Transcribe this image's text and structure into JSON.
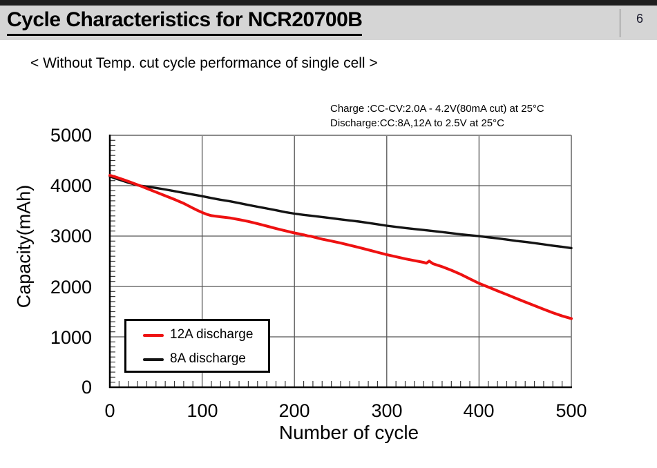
{
  "header": {
    "title": "Cycle Characteristics for NCR20700B",
    "page_number": "6"
  },
  "subtitle": "< Without Temp. cut cycle performance of single cell >",
  "colors": {
    "red_series": "#ee1111",
    "black_series": "#141414",
    "gridline": "#555555",
    "plot_border_gray": "#8a8a8a",
    "axis_black": "#000000",
    "header_band": "#d5d5d5",
    "top_strip": "#1e1e1e"
  },
  "chart_data": {
    "type": "line",
    "annotation_lines": [
      "Charge :CC-CV:2.0A - 4.2V(80mA cut) at 25°C",
      "Discharge:CC:8A,12A to 2.5V at 25°C"
    ],
    "xlabel": "Number of cycle",
    "ylabel": "Capacity(mAh)",
    "xlim": [
      0,
      500
    ],
    "ylim": [
      0,
      5000
    ],
    "x_major_step": 100,
    "y_major_step": 1000,
    "x_minor_step": 10,
    "y_minor_step": 100,
    "grid": true,
    "x_tick_labels": [
      "0",
      "100",
      "200",
      "300",
      "400",
      "500"
    ],
    "y_tick_labels": [
      "5000",
      "4000",
      "3000",
      "2000",
      "1000",
      "0"
    ],
    "legend": {
      "position": "lower-left",
      "entries": [
        {
          "label": "12A discharge",
          "color": "#ee1111"
        },
        {
          "label": "8A discharge",
          "color": "#141414"
        }
      ]
    },
    "series": [
      {
        "name": "8A discharge",
        "color": "#141414",
        "width": 3.4,
        "points": [
          [
            0,
            4185
          ],
          [
            5,
            4150
          ],
          [
            10,
            4120
          ],
          [
            15,
            4090
          ],
          [
            20,
            4060
          ],
          [
            25,
            4034
          ],
          [
            30,
            4008
          ],
          [
            35,
            3995
          ],
          [
            40,
            3982
          ],
          [
            50,
            3955
          ],
          [
            60,
            3925
          ],
          [
            70,
            3892
          ],
          [
            80,
            3858
          ],
          [
            90,
            3824
          ],
          [
            100,
            3792
          ],
          [
            110,
            3755
          ],
          [
            120,
            3720
          ],
          [
            130,
            3690
          ],
          [
            140,
            3655
          ],
          [
            150,
            3618
          ],
          [
            160,
            3582
          ],
          [
            170,
            3548
          ],
          [
            180,
            3512
          ],
          [
            190,
            3475
          ],
          [
            200,
            3445
          ],
          [
            210,
            3420
          ],
          [
            220,
            3400
          ],
          [
            230,
            3378
          ],
          [
            240,
            3355
          ],
          [
            250,
            3332
          ],
          [
            260,
            3310
          ],
          [
            270,
            3288
          ],
          [
            280,
            3262
          ],
          [
            290,
            3234
          ],
          [
            300,
            3206
          ],
          [
            310,
            3182
          ],
          [
            320,
            3160
          ],
          [
            330,
            3140
          ],
          [
            340,
            3120
          ],
          [
            350,
            3100
          ],
          [
            360,
            3080
          ],
          [
            370,
            3058
          ],
          [
            380,
            3036
          ],
          [
            390,
            3016
          ],
          [
            400,
            2998
          ],
          [
            410,
            2976
          ],
          [
            420,
            2955
          ],
          [
            430,
            2930
          ],
          [
            440,
            2906
          ],
          [
            450,
            2885
          ],
          [
            460,
            2860
          ],
          [
            470,
            2836
          ],
          [
            480,
            2810
          ],
          [
            490,
            2786
          ],
          [
            500,
            2762
          ]
        ]
      },
      {
        "name": "12A discharge",
        "color": "#ee1111",
        "width": 4,
        "points": [
          [
            0,
            4205
          ],
          [
            5,
            4180
          ],
          [
            10,
            4150
          ],
          [
            15,
            4118
          ],
          [
            20,
            4085
          ],
          [
            25,
            4052
          ],
          [
            30,
            4018
          ],
          [
            35,
            3982
          ],
          [
            40,
            3945
          ],
          [
            50,
            3872
          ],
          [
            60,
            3800
          ],
          [
            70,
            3728
          ],
          [
            80,
            3650
          ],
          [
            90,
            3555
          ],
          [
            95,
            3510
          ],
          [
            100,
            3468
          ],
          [
            105,
            3432
          ],
          [
            110,
            3405
          ],
          [
            120,
            3382
          ],
          [
            130,
            3360
          ],
          [
            140,
            3328
          ],
          [
            150,
            3290
          ],
          [
            160,
            3245
          ],
          [
            170,
            3198
          ],
          [
            180,
            3150
          ],
          [
            190,
            3105
          ],
          [
            200,
            3062
          ],
          [
            210,
            3025
          ],
          [
            215,
            3002
          ],
          [
            218,
            2996
          ],
          [
            225,
            2962
          ],
          [
            230,
            2940
          ],
          [
            240,
            2902
          ],
          [
            250,
            2862
          ],
          [
            260,
            2818
          ],
          [
            270,
            2772
          ],
          [
            280,
            2726
          ],
          [
            290,
            2678
          ],
          [
            300,
            2632
          ],
          [
            310,
            2590
          ],
          [
            320,
            2550
          ],
          [
            330,
            2513
          ],
          [
            340,
            2478
          ],
          [
            343,
            2462
          ],
          [
            346,
            2504
          ],
          [
            350,
            2452
          ],
          [
            360,
            2392
          ],
          [
            370,
            2322
          ],
          [
            380,
            2242
          ],
          [
            390,
            2152
          ],
          [
            400,
            2062
          ],
          [
            410,
            1988
          ],
          [
            420,
            1912
          ],
          [
            430,
            1840
          ],
          [
            440,
            1766
          ],
          [
            450,
            1692
          ],
          [
            460,
            1620
          ],
          [
            470,
            1548
          ],
          [
            480,
            1478
          ],
          [
            490,
            1415
          ],
          [
            500,
            1362
          ]
        ]
      }
    ]
  }
}
